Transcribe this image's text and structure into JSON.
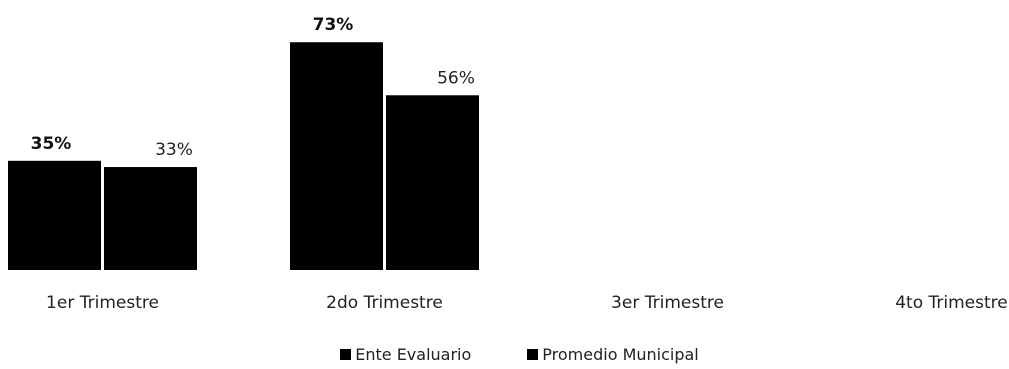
{
  "chart_data": {
    "type": "bar",
    "categories": [
      "1er Trimestre",
      "2do Trimestre",
      "3er Trimestre",
      "4to Trimestre"
    ],
    "series": [
      {
        "name": "Ente Evaluario",
        "values": [
          35,
          73,
          null,
          null
        ],
        "labels": [
          "35%",
          "73%",
          "",
          ""
        ]
      },
      {
        "name": "Promedio Municipal",
        "values": [
          33,
          56,
          null,
          null
        ],
        "labels": [
          "33%",
          "56%",
          "",
          ""
        ]
      }
    ],
    "ylim": [
      0,
      80
    ],
    "grid": false,
    "legend_position": "bottom",
    "colors": {
      "series_a": "#000000",
      "series_b": "#000000"
    }
  }
}
